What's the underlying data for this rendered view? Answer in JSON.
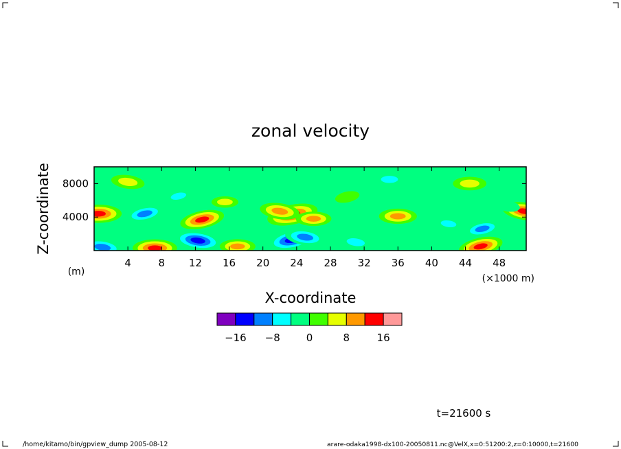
{
  "chart_data": {
    "type": "heatmap",
    "title": "zonal velocity",
    "xlabel": "X-coordinate",
    "ylabel": "Z-coordinate",
    "x_unit": "(×1000 m)",
    "y_unit": "(m)",
    "xlim": [
      0,
      51.2
    ],
    "ylim": [
      0,
      10000
    ],
    "x_ticks": [
      4,
      8,
      12,
      16,
      20,
      24,
      28,
      32,
      36,
      40,
      44,
      48
    ],
    "y_ticks": [
      4000,
      8000
    ],
    "colorbar": {
      "boundaries": [
        -20,
        -16,
        -12,
        -8,
        -4,
        0,
        4,
        8,
        12,
        16,
        20
      ],
      "labels": [
        -16,
        -8,
        0,
        8,
        16
      ],
      "colors": [
        "#7f00bf",
        "#0000ff",
        "#0080ff",
        "#00ffff",
        "#00ff80",
        "#40ff00",
        "#e6ff00",
        "#ff9900",
        "#ff0000",
        "#ff9999"
      ]
    },
    "features": [
      {
        "x": 23.5,
        "z": 4300,
        "value": 17
      },
      {
        "x": 22.0,
        "z": 4700,
        "value": 12
      },
      {
        "x": 26.0,
        "z": 3800,
        "value": 10
      },
      {
        "x": 23.5,
        "z": 1300,
        "value": -16
      },
      {
        "x": 25.0,
        "z": 1600,
        "value": -12
      },
      {
        "x": 0.5,
        "z": 4400,
        "value": 15
      },
      {
        "x": 12.8,
        "z": 3700,
        "value": 14
      },
      {
        "x": 12.3,
        "z": 1200,
        "value": -15
      },
      {
        "x": 7.2,
        "z": 300,
        "value": 14
      },
      {
        "x": 45.8,
        "z": 500,
        "value": 14
      },
      {
        "x": 51.0,
        "z": 4700,
        "value": 14
      },
      {
        "x": 36.0,
        "z": 4100,
        "value": 11
      },
      {
        "x": 6.0,
        "z": 4400,
        "value": -11
      },
      {
        "x": 4.0,
        "z": 8200,
        "value": 9
      },
      {
        "x": 44.5,
        "z": 8000,
        "value": 9
      },
      {
        "x": 46.0,
        "z": 2600,
        "value": -10
      },
      {
        "x": 31.0,
        "z": 1000,
        "value": -8
      },
      {
        "x": 35.0,
        "z": 8500,
        "value": -7
      },
      {
        "x": 10.0,
        "z": 6500,
        "value": -6
      },
      {
        "x": 42.0,
        "z": 3200,
        "value": -6
      },
      {
        "x": 17.0,
        "z": 500,
        "value": 10
      },
      {
        "x": 40.0,
        "z": 4800,
        "value": -5
      },
      {
        "x": 1.0,
        "z": 400,
        "value": -12
      },
      {
        "x": 15.5,
        "z": 5800,
        "value": 6
      },
      {
        "x": 30.0,
        "z": 6400,
        "value": 5
      },
      {
        "x": 49.0,
        "z": 5300,
        "value": -5
      }
    ],
    "time_label": "t=21600 s",
    "footer_left": "/home/kitamo/bin/gpview_dump  2005-08-12",
    "footer_right": "arare-odaka1998-dx100-20050811.nc@VelX,x=0:51200:2,z=0:10000,t=21600"
  }
}
